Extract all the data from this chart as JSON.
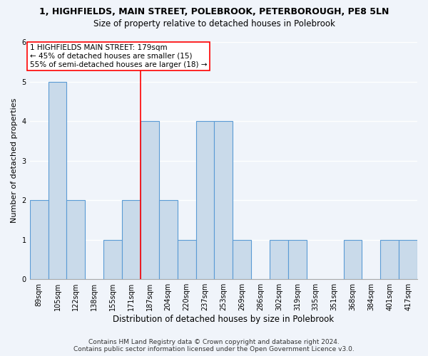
{
  "title": "1, HIGHFIELDS, MAIN STREET, POLEBROOK, PETERBOROUGH, PE8 5LN",
  "subtitle": "Size of property relative to detached houses in Polebrook",
  "xlabel": "Distribution of detached houses by size in Polebrook",
  "ylabel": "Number of detached properties",
  "categories": [
    "89sqm",
    "105sqm",
    "122sqm",
    "138sqm",
    "155sqm",
    "171sqm",
    "187sqm",
    "204sqm",
    "220sqm",
    "237sqm",
    "253sqm",
    "269sqm",
    "286sqm",
    "302sqm",
    "319sqm",
    "335sqm",
    "351sqm",
    "368sqm",
    "384sqm",
    "401sqm",
    "417sqm"
  ],
  "values": [
    2,
    5,
    2,
    0,
    1,
    2,
    4,
    2,
    1,
    4,
    4,
    1,
    0,
    1,
    1,
    0,
    0,
    1,
    0,
    1,
    1
  ],
  "bar_color": "#c9daea",
  "bar_edge_color": "#5b9bd5",
  "vline_index": 5.5,
  "annotation_text_line1": "1 HIGHFIELDS MAIN STREET: 179sqm",
  "annotation_text_line2": "← 45% of detached houses are smaller (15)",
  "annotation_text_line3": "55% of semi-detached houses are larger (18) →",
  "annotation_box_color": "white",
  "annotation_box_edge_color": "red",
  "vline_color": "red",
  "ylim": [
    0,
    6
  ],
  "yticks": [
    0,
    1,
    2,
    3,
    4,
    5,
    6
  ],
  "footer_line1": "Contains HM Land Registry data © Crown copyright and database right 2024.",
  "footer_line2": "Contains public sector information licensed under the Open Government Licence v3.0.",
  "title_fontsize": 9,
  "subtitle_fontsize": 8.5,
  "xlabel_fontsize": 8.5,
  "ylabel_fontsize": 8,
  "tick_fontsize": 7,
  "annotation_fontsize": 7.5,
  "footer_fontsize": 6.5,
  "bg_color": "#f0f4fa"
}
